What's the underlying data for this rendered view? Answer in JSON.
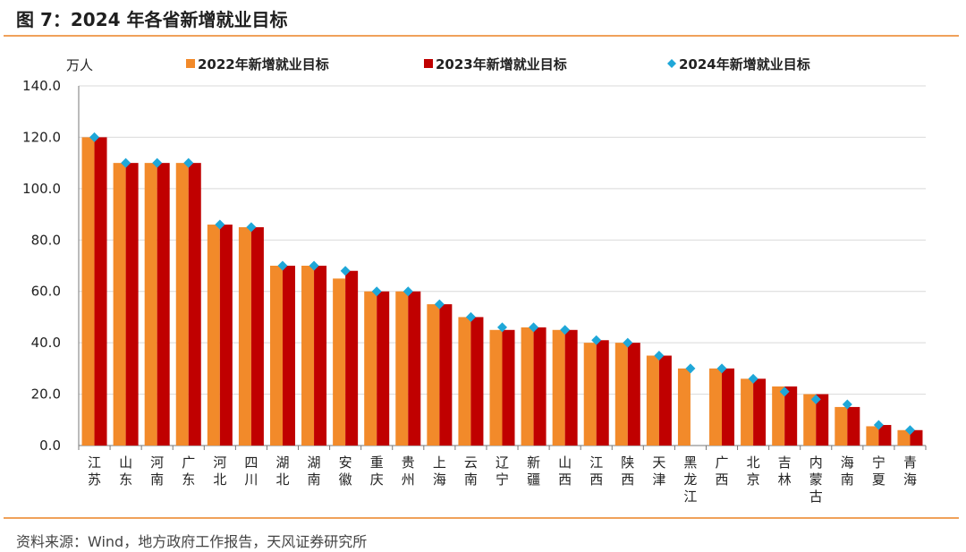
{
  "figure": {
    "title": "图 7：2024 年各省新增就业目标",
    "source": "资料来源：Wind，地方政府工作报告，天风证券研究所"
  },
  "colors": {
    "rule": "#f0a15a",
    "series_2022": "#f28a2a",
    "series_2023": "#c00000",
    "series_2024": "#1fa7d8"
  },
  "chart_data": {
    "type": "bar",
    "unit": "万人",
    "ylim": [
      0,
      140
    ],
    "yticks": [
      "0.0",
      "20.0",
      "40.0",
      "60.0",
      "80.0",
      "100.0",
      "120.0",
      "140.0"
    ],
    "grid": true,
    "legend_position": "top",
    "categories": [
      "江苏",
      "山东",
      "河南",
      "广东",
      "河北",
      "四川",
      "湖北",
      "湖南",
      "安徽",
      "重庆",
      "贵州",
      "上海",
      "云南",
      "辽宁",
      "新疆",
      "山西",
      "江西",
      "陕西",
      "天津",
      "黑龙江",
      "广西",
      "北京",
      "吉林",
      "内蒙古",
      "海南",
      "宁夏",
      "青海"
    ],
    "series": [
      {
        "name": "2022年新增就业目标",
        "kind": "bar",
        "color": "#f28a2a",
        "values": [
          120,
          110,
          110,
          110,
          86,
          85,
          70,
          70,
          65,
          60,
          60,
          55,
          50,
          45,
          46,
          45,
          40,
          40,
          35,
          30,
          30,
          26,
          23,
          20,
          15,
          7.5,
          6
        ]
      },
      {
        "name": "2023年新增就业目标",
        "kind": "bar",
        "color": "#c00000",
        "values": [
          120,
          110,
          110,
          110,
          86,
          85,
          70,
          70,
          68,
          60,
          60,
          55,
          50,
          45,
          46,
          45,
          41,
          40,
          35,
          null,
          30,
          26,
          23,
          20,
          15,
          8,
          6
        ]
      },
      {
        "name": "2024年新增就业目标",
        "kind": "marker",
        "color": "#1fa7d8",
        "values": [
          120,
          110,
          110,
          110,
          86,
          85,
          70,
          70,
          68,
          60,
          60,
          55,
          50,
          46,
          46,
          45,
          41,
          40,
          35,
          30,
          30,
          26,
          21,
          18,
          16,
          8,
          6
        ]
      }
    ]
  }
}
